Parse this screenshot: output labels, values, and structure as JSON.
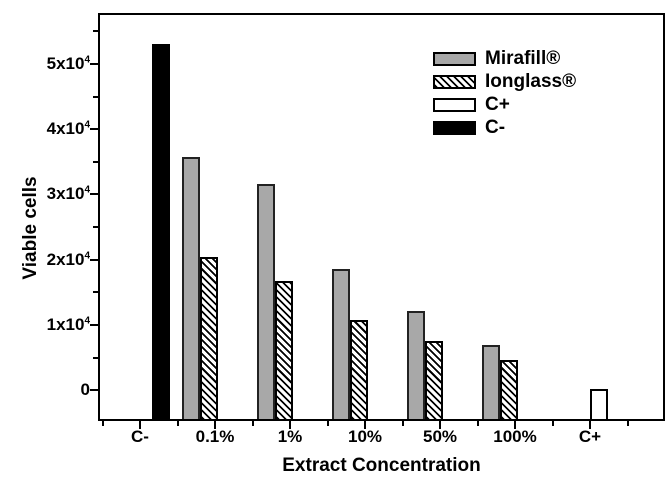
{
  "chart_data": {
    "type": "bar",
    "title": "",
    "xlabel": "Extract Concentration",
    "ylabel": "Viable cells",
    "categories": [
      "C-",
      "0.1%",
      "1%",
      "10%",
      "50%",
      "100%",
      "C+"
    ],
    "series": [
      {
        "name": "Mirafill®",
        "style": "gray",
        "values": [
          null,
          35800,
          31600,
          18600,
          12200,
          6900,
          null
        ]
      },
      {
        "name": "Ionglass®",
        "style": "hatch",
        "values": [
          null,
          20400,
          16700,
          10800,
          7500,
          4700,
          null
        ]
      },
      {
        "name": "C+",
        "style": "white",
        "values": [
          null,
          null,
          null,
          null,
          null,
          null,
          200
        ]
      },
      {
        "name": "C-",
        "style": "black",
        "values": [
          53000,
          null,
          null,
          null,
          null,
          null,
          null
        ]
      }
    ],
    "ylim": [
      -4400,
      57500
    ],
    "yticks_major": [
      {
        "value": 0,
        "base": "0",
        "sup": ""
      },
      {
        "value": 10000,
        "base": "1x10",
        "sup": "4"
      },
      {
        "value": 20000,
        "base": "2x10",
        "sup": "4"
      },
      {
        "value": 30000,
        "base": "3x10",
        "sup": "4"
      },
      {
        "value": 40000,
        "base": "4x10",
        "sup": "4"
      },
      {
        "value": 50000,
        "base": "5x10",
        "sup": "4"
      }
    ],
    "yticks_minor": [
      5000,
      15000,
      25000,
      35000,
      45000,
      55000
    ],
    "grid": false,
    "legend_position": "top-right",
    "colors": {
      "bar_gray_fill": "#a8a8a8",
      "bar_black_fill": "#000000",
      "bar_white_fill": "#ffffff",
      "hatch": "black diagonal lines on white",
      "edge": "#000000",
      "background": "#ffffff"
    }
  }
}
